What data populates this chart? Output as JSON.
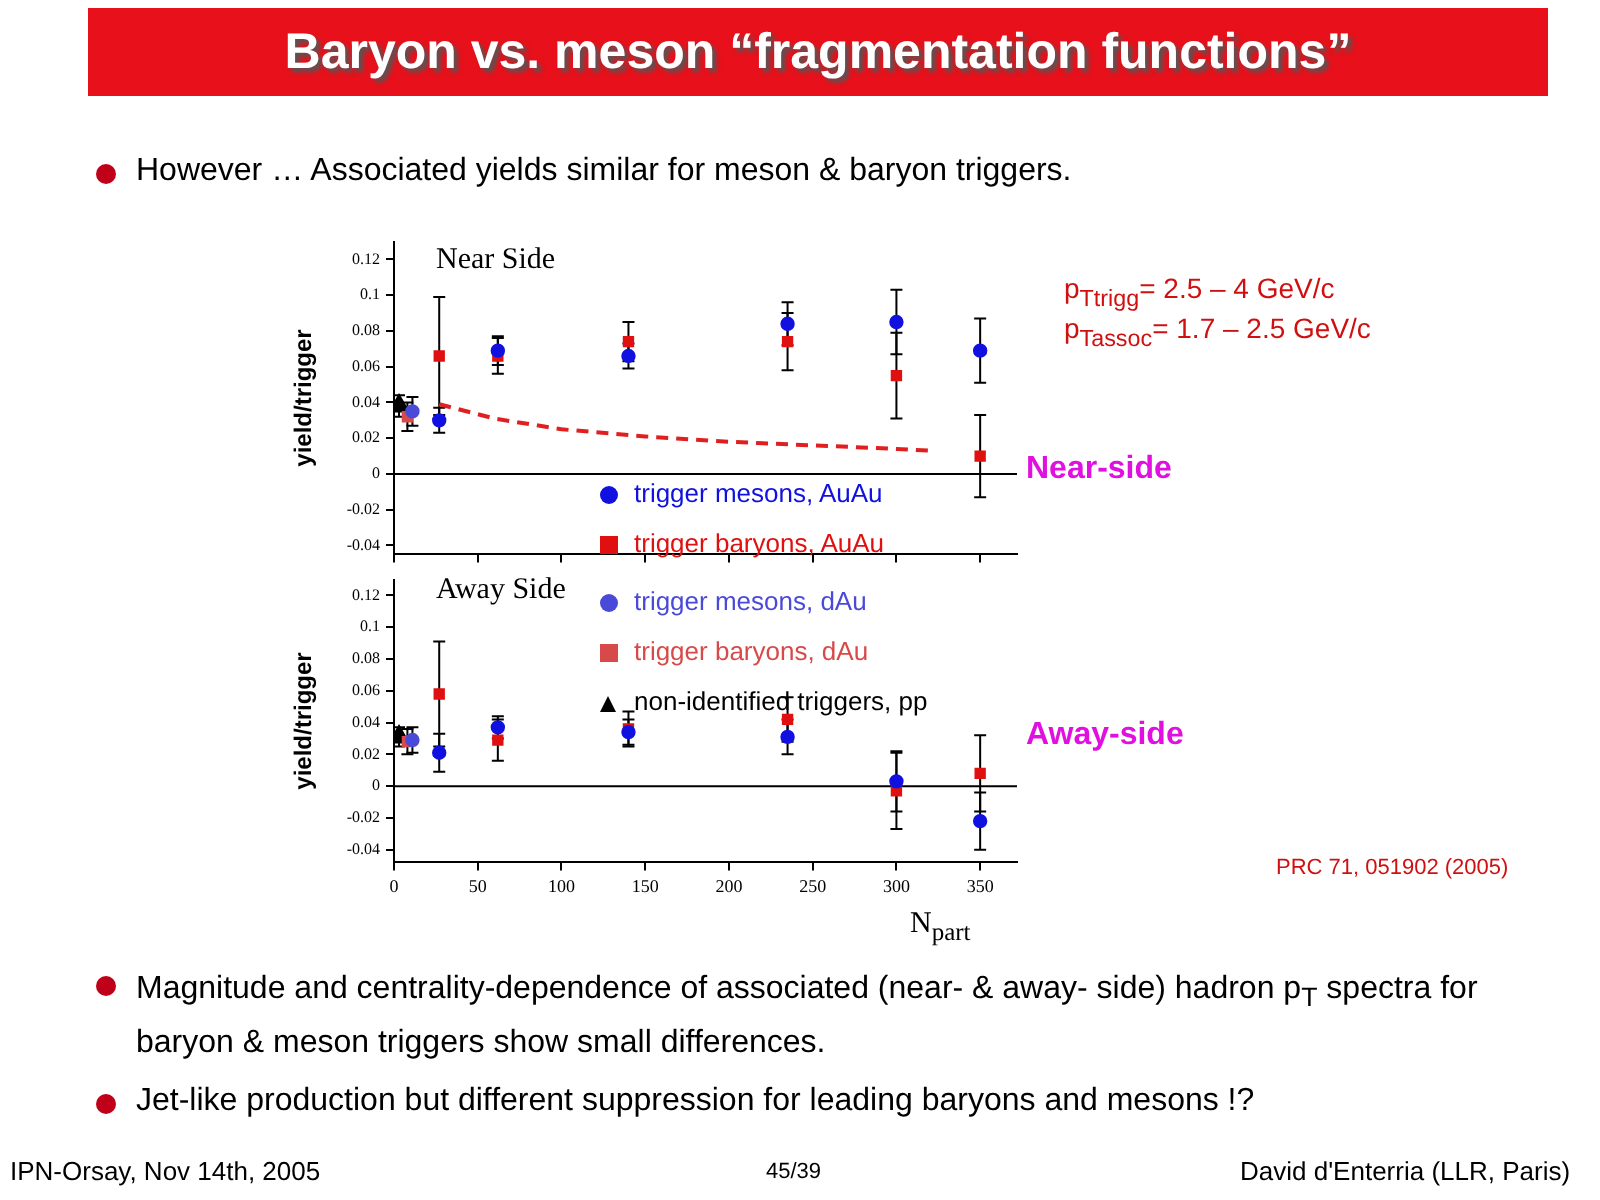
{
  "chart_data": [
    {
      "type": "scatter",
      "title": "Baryon vs. meson “fragmentation functions”",
      "ylabel": "yield/trigger",
      "xlim": [
        0,
        372
      ],
      "xticks": [
        0,
        50,
        100,
        150,
        200,
        250,
        300,
        350
      ],
      "ylim": [
        -0.045,
        0.13
      ],
      "yticks": [
        -0.04,
        -0.02,
        0,
        0.02,
        0.04,
        0.06,
        0.08,
        0.1,
        0.12
      ],
      "tick_labels": "y",
      "legend": "bottom right",
      "grid": false,
      "ref_lines": [
        {
          "axis": "y",
          "value": 0
        }
      ],
      "annotations": [
        "However … Associated yields similar for meson & baryon triggers.",
        "Near Side",
        "p$_{Ttrigg}$= 2.5 – 4 GeV/c",
        "p$_{Tassoc}$= 1.7 – 2.5 GeV/c",
        "Near-side",
        "Magnitude and centrality-dependence of associated (near- & away- side) hadron p$_{T}$ spectra for baryon & meson triggers show small differences.",
        "Jet-like production but different suppression for leading baryons and mesons !?",
        "IPN-Orsay, Nov 14th, 2005",
        "45/39",
        "David d'Enterria (LLR, Paris)"
      ],
      "series": [
        {
          "name": "trigger mesons, AuAu",
          "color": "#1010e0",
          "marker": "circle",
          "x": [
            27,
            62,
            140,
            235,
            300,
            350
          ],
          "values": [
            0.03,
            0.069,
            0.066,
            0.084,
            0.085,
            0.069
          ],
          "errors": [
            0.007,
            0.008,
            0.007,
            0.012,
            0.018,
            0.018
          ]
        },
        {
          "name": "trigger baryons, AuAu",
          "color": "#e01010",
          "marker": "square",
          "x": [
            27,
            62,
            140,
            235,
            300,
            350
          ],
          "values": [
            0.066,
            0.066,
            0.074,
            0.074,
            0.055,
            0.01
          ],
          "errors": [
            0.033,
            0.01,
            0.011,
            0.016,
            0.024,
            0.023
          ]
        },
        {
          "color": "#4a4ad8",
          "marker": "circle",
          "x": [
            11
          ],
          "values": [
            0.035
          ],
          "errors": [
            0.008
          ]
        },
        {
          "color": "#d84a4a",
          "marker": "square",
          "x": [
            8
          ],
          "values": [
            0.032
          ],
          "errors": [
            0.008
          ]
        },
        {
          "color": "#000000",
          "marker": "triangle",
          "x": [
            3
          ],
          "values": [
            0.038
          ],
          "errors": [
            0.006
          ]
        },
        {
          "type": "line",
          "color": "#e02020",
          "marker": "none",
          "line_style": "dashed",
          "x": [
            27,
            60,
            100,
            150,
            200,
            250,
            300,
            320
          ],
          "values": [
            0.039,
            0.031,
            0.025,
            0.021,
            0.018,
            0.016,
            0.014,
            0.013
          ]
        }
      ]
    },
    {
      "type": "scatter",
      "xlabel": "N$_{part}$",
      "ylabel": "yield/trigger",
      "xlim": [
        0,
        372
      ],
      "xticks": [
        0,
        50,
        100,
        150,
        200,
        250,
        300,
        350
      ],
      "ylim": [
        -0.048,
        0.13
      ],
      "yticks": [
        -0.04,
        -0.02,
        0,
        0.02,
        0.04,
        0.06,
        0.08,
        0.1,
        0.12
      ],
      "legend": "top right",
      "grid": false,
      "ref_lines": [
        {
          "axis": "y",
          "value": 0
        }
      ],
      "annotations": [
        "Away Side",
        "Away-side",
        "PRC 71, 051902 (2005)"
      ],
      "series": [
        {
          "color": "#1010e0",
          "marker": "circle",
          "x": [
            27,
            62,
            140,
            235,
            300,
            350
          ],
          "values": [
            0.021,
            0.037,
            0.034,
            0.031,
            0.003,
            -0.022
          ],
          "errors": [
            0.012,
            0.007,
            0.008,
            0.011,
            0.019,
            0.018
          ]
        },
        {
          "color": "#e01010",
          "marker": "square",
          "x": [
            27,
            62,
            140,
            235,
            300,
            350
          ],
          "values": [
            0.058,
            0.029,
            0.036,
            0.042,
            -0.003,
            0.008
          ],
          "errors": [
            0.033,
            0.013,
            0.011,
            0.014,
            0.024,
            0.024
          ]
        },
        {
          "name": "trigger mesons, dAu",
          "color": "#4a4ad8",
          "marker": "circle",
          "x": [
            11
          ],
          "values": [
            0.029
          ],
          "errors": [
            0.008
          ]
        },
        {
          "name": "trigger baryons, dAu",
          "color": "#d84a4a",
          "marker": "square",
          "x": [
            8
          ],
          "values": [
            0.028
          ],
          "errors": [
            0.008
          ]
        },
        {
          "name": "non-identified triggers, pp",
          "color": "#000000",
          "marker": "triangle",
          "x": [
            3
          ],
          "values": [
            0.031
          ],
          "errors": [
            0.006
          ]
        }
      ]
    }
  ]
}
